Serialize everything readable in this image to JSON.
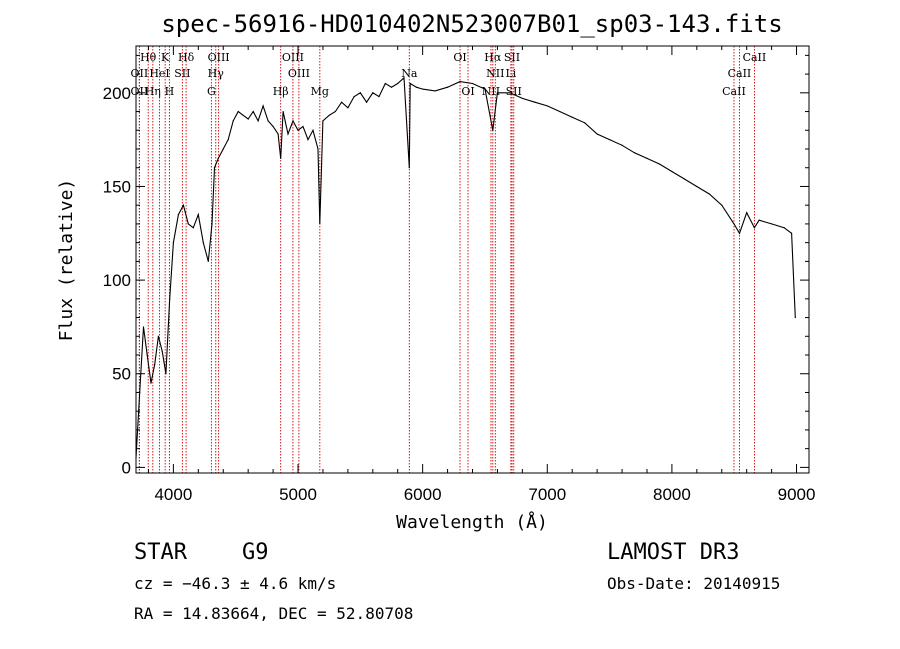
{
  "chart_data": {
    "type": "line",
    "title": "spec-56916-HD010402N523007B01_sp03-143.fits",
    "xlabel": "Wavelength (Å)",
    "ylabel": "Flux (relative)",
    "xlim": [
      3700,
      9100
    ],
    "ylim": [
      -3,
      225
    ],
    "xticks": [
      4000,
      5000,
      6000,
      7000,
      8000,
      9000
    ],
    "yticks": [
      0,
      50,
      100,
      150,
      200
    ],
    "series": [
      {
        "name": "flux",
        "x": [
          3700,
          3730,
          3760,
          3790,
          3820,
          3850,
          3880,
          3910,
          3940,
          3970,
          4000,
          4040,
          4080,
          4120,
          4160,
          4200,
          4240,
          4280,
          4310,
          4330,
          4360,
          4400,
          4440,
          4480,
          4520,
          4560,
          4600,
          4640,
          4680,
          4720,
          4760,
          4800,
          4840,
          4861,
          4880,
          4920,
          4960,
          5000,
          5040,
          5080,
          5120,
          5160,
          5175,
          5200,
          5250,
          5300,
          5350,
          5400,
          5450,
          5500,
          5550,
          5600,
          5650,
          5700,
          5750,
          5800,
          5850,
          5893,
          5900,
          5950,
          6000,
          6100,
          6200,
          6300,
          6400,
          6500,
          6563,
          6600,
          6700,
          6800,
          6900,
          7000,
          7100,
          7200,
          7300,
          7400,
          7500,
          7600,
          7700,
          7800,
          7900,
          8000,
          8100,
          8200,
          8300,
          8400,
          8498,
          8542,
          8600,
          8662,
          8700,
          8800,
          8900,
          8960,
          8990
        ],
        "values": [
          5,
          40,
          75,
          60,
          45,
          55,
          70,
          62,
          50,
          90,
          120,
          135,
          140,
          130,
          128,
          135,
          120,
          110,
          130,
          160,
          165,
          170,
          175,
          185,
          190,
          188,
          186,
          190,
          185,
          193,
          185,
          182,
          178,
          165,
          190,
          178,
          185,
          180,
          182,
          175,
          180,
          170,
          130,
          185,
          188,
          190,
          195,
          192,
          198,
          200,
          195,
          200,
          198,
          205,
          203,
          205,
          208,
          160,
          205,
          203,
          202,
          201,
          203,
          206,
          205,
          202,
          180,
          200,
          200,
          197,
          195,
          193,
          190,
          187,
          184,
          178,
          175,
          172,
          168,
          165,
          162,
          158,
          154,
          150,
          146,
          140,
          130,
          125,
          136,
          128,
          132,
          130,
          128,
          125,
          80
        ]
      }
    ],
    "spectral_lines": [
      {
        "label": "Hθ",
        "x": 3798,
        "row": 1
      },
      {
        "label": "K",
        "x": 3934,
        "row": 1
      },
      {
        "label": "Hδ",
        "x": 4102,
        "row": 1
      },
      {
        "label": "OIII",
        "x": 4363,
        "row": 1
      },
      {
        "label": "OIII",
        "x": 4959,
        "row": 1
      },
      {
        "label": "OI",
        "x": 6300,
        "row": 1
      },
      {
        "label": "Hα",
        "x": 6563,
        "row": 1
      },
      {
        "label": "SII",
        "x": 6717,
        "row": 1
      },
      {
        "label": "CaII",
        "x": 8662,
        "row": 1
      },
      {
        "label": "OII",
        "x": 3727,
        "row": 2
      },
      {
        "label": "HeI",
        "x": 3889,
        "row": 2
      },
      {
        "label": "SII",
        "x": 4072,
        "row": 2
      },
      {
        "label": "Hγ",
        "x": 4340,
        "row": 2
      },
      {
        "label": "OIII",
        "x": 5007,
        "row": 2
      },
      {
        "label": "Na",
        "x": 5893,
        "row": 2
      },
      {
        "label": "NII",
        "x": 6583,
        "row": 2
      },
      {
        "label": "Li",
        "x": 6708,
        "row": 2
      },
      {
        "label": "CaII",
        "x": 8542,
        "row": 2
      },
      {
        "label": "OII",
        "x": 3727,
        "row": 3
      },
      {
        "label": "Hη",
        "x": 3835,
        "row": 3
      },
      {
        "label": "H",
        "x": 3968,
        "row": 3
      },
      {
        "label": "G",
        "x": 4305,
        "row": 3
      },
      {
        "label": "Hβ",
        "x": 4861,
        "row": 3
      },
      {
        "label": "Mg",
        "x": 5175,
        "row": 3
      },
      {
        "label": "OI",
        "x": 6364,
        "row": 3
      },
      {
        "label": "NII",
        "x": 6548,
        "row": 3
      },
      {
        "label": "SII",
        "x": 6731,
        "row": 3
      },
      {
        "label": "CaII",
        "x": 8498,
        "row": 3
      }
    ]
  },
  "info": {
    "object_class": "STAR",
    "subclass": "G9",
    "survey": "LAMOST DR3",
    "cz": "cz = −46.3 ± 4.6 km/s",
    "obs_date": "Obs-Date: 20140915",
    "coords": "RA =  14.83664, DEC =  52.80708"
  }
}
